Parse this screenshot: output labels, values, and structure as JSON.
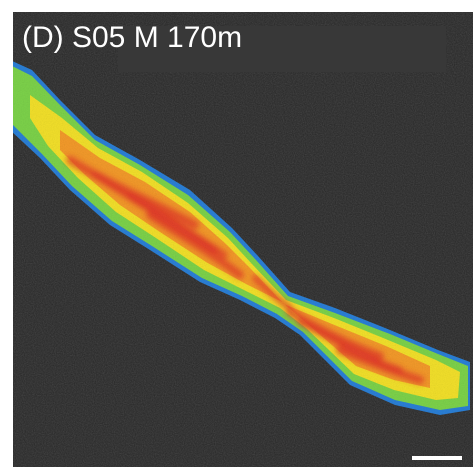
{
  "panel": {
    "label": "(D) S05 M 170m"
  },
  "image": {
    "subject": "elongated-fiber-heatmap",
    "background_color": "#262626",
    "colors": {
      "edge": "#2a7fd6",
      "outer": "#7cd24a",
      "middle": "#f2e02a",
      "core": "#f39a2a",
      "hot": "#e2342a"
    }
  },
  "scale_bar": {
    "color": "#ffffff"
  }
}
